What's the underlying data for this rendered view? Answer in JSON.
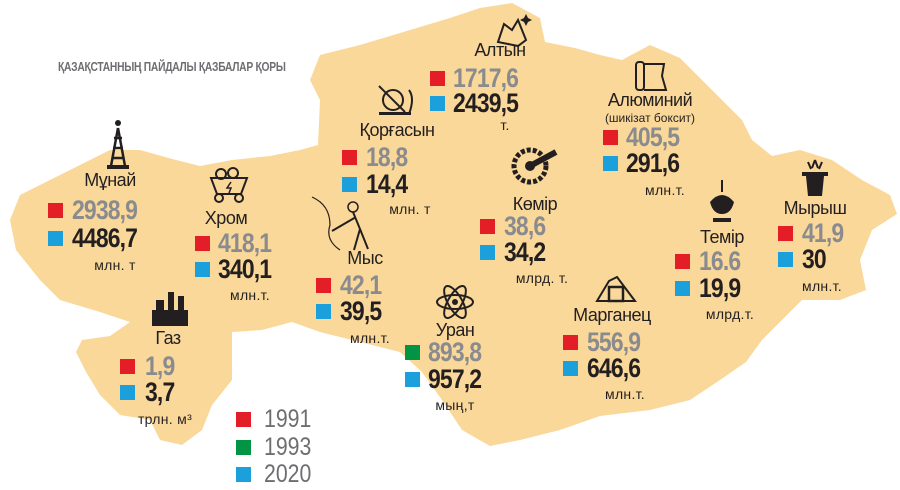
{
  "title": "ҚАЗАҚСТАННЫҢ ПАЙДАЛЫ ҚАЗБАЛАР ҚОРЫ",
  "colors": {
    "map_fill": "#fad899",
    "y1991": "#e41e26",
    "y1993": "#009444",
    "y2020": "#1ba0db",
    "old_value": "#8a8b8e",
    "new_value": "#231f20"
  },
  "legend": [
    {
      "year": "1991",
      "color": "#e41e26"
    },
    {
      "year": "1993",
      "color": "#009444"
    },
    {
      "year": "2020",
      "color": "#1ba0db"
    }
  ],
  "minerals": {
    "gold": {
      "name": "Алтын",
      "icon": "gold-nugget-icon",
      "old": "1717,6",
      "old_year": "1991",
      "new": "2439,5",
      "unit": "т."
    },
    "lead": {
      "name": "Қорғасын",
      "icon": "lead-mining-icon",
      "old": "18,8",
      "old_year": "1991",
      "new": "14,4",
      "unit": "млн. т"
    },
    "oil": {
      "name": "Мұнай",
      "icon": "oil-derrick-icon",
      "old": "2938,9",
      "old_year": "1991",
      "new": "4486,7",
      "unit": "млн. т"
    },
    "chrome": {
      "name": "Хром",
      "icon": "mine-cart-icon",
      "old": "418,1",
      "old_year": "1991",
      "new": "340,1",
      "unit": "млн.т."
    },
    "copper": {
      "name": "Мыс",
      "icon": "miner-icon",
      "old": "42,1",
      "old_year": "1991",
      "new": "39,5",
      "unit": "млн.т."
    },
    "gas": {
      "name": "Газ",
      "icon": "gas-plant-icon",
      "old": "1,9",
      "old_year": "1991",
      "new": "3,7",
      "unit": "трлн. м³"
    },
    "uranium": {
      "name": "Уран",
      "icon": "atom-icon",
      "old": "893,8",
      "old_year": "1993",
      "new": "957,2",
      "unit": "мың,т"
    },
    "coal": {
      "name": "Көмір",
      "icon": "excavator-wheel-icon",
      "old": "38,6",
      "old_year": "1991",
      "new": "34,2",
      "unit": "млрд. т."
    },
    "aluminium": {
      "name": "Алюминий",
      "sub": "(шикізат боксит)",
      "icon": "aluminium-foil-icon",
      "old": "405,5",
      "old_year": "1991",
      "new": "291,6",
      "unit": "млн.т."
    },
    "manganese": {
      "name": "Марганец",
      "icon": "mine-entrance-icon",
      "old": "556,9",
      "old_year": "1991",
      "new": "646,6",
      "unit": "млн.т."
    },
    "iron": {
      "name": "Темір",
      "icon": "crane-grab-icon",
      "old": "16.6",
      "old_year": "1991",
      "new": "19,9",
      "unit": "млрд.т."
    },
    "zinc": {
      "name": "Мырыш",
      "icon": "zinc-bucket-icon",
      "old": "41,9",
      "old_year": "1991",
      "new": "30",
      "unit": "млн.т."
    }
  }
}
